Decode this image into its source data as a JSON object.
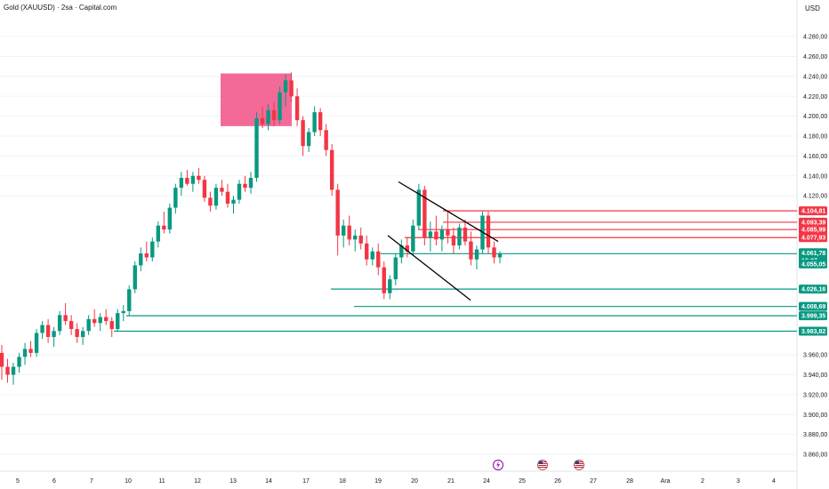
{
  "header": {
    "title": "Gold (XAUUSD) · 2sa · Capital.com",
    "currency": "USD"
  },
  "chart_data": {
    "type": "candlestick",
    "title": "Gold (XAUUSD) · 2sa · Capital.com",
    "ylim": [
      3850,
      4300
    ],
    "yticks": [
      3860,
      3880,
      3900,
      3920,
      3940,
      3960,
      4120,
      4140,
      4160,
      4180,
      4200,
      4220,
      4240,
      4260,
      4280
    ],
    "yticks_display": [
      "3.860,00",
      "3.880,00",
      "3.900,00",
      "3.920,00",
      "3.940,00",
      "3.960,00",
      "4.120,00",
      "4.140,00",
      "4.160,00",
      "4.180,00",
      "4.200,00",
      "4.220,00",
      "4.240,00",
      "4.260,00",
      "4.280,00"
    ],
    "x_labels": [
      "5",
      "6",
      "7",
      "10",
      "11",
      "12",
      "13",
      "14",
      "17",
      "18",
      "19",
      "20",
      "21",
      "24",
      "25",
      "26",
      "27",
      "28",
      "Ara",
      "2",
      "3",
      "4"
    ],
    "colors": {
      "up": "#089981",
      "down": "#f23645",
      "box": "#f0457e",
      "trendline": "#000000"
    },
    "candles": [
      [
        3962,
        3970,
        3935,
        3948
      ],
      [
        3948,
        3956,
        3932,
        3940
      ],
      [
        3940,
        3952,
        3930,
        3948
      ],
      [
        3948,
        3962,
        3942,
        3958
      ],
      [
        3958,
        3972,
        3950,
        3966
      ],
      [
        3966,
        3974,
        3958,
        3962
      ],
      [
        3962,
        3986,
        3958,
        3982
      ],
      [
        3982,
        3994,
        3976,
        3990
      ],
      [
        3990,
        3996,
        3972,
        3978
      ],
      [
        3978,
        3988,
        3968,
        3984
      ],
      [
        3984,
        4004,
        3980,
        4000
      ],
      [
        4000,
        4012,
        3990,
        3994
      ],
      [
        3994,
        4000,
        3980,
        3986
      ],
      [
        3986,
        3992,
        3972,
        3978
      ],
      [
        3978,
        3988,
        3970,
        3984
      ],
      [
        3984,
        4000,
        3980,
        3996
      ],
      [
        3996,
        4006,
        3988,
        3992
      ],
      [
        3992,
        4002,
        3984,
        3998
      ],
      [
        3998,
        4006,
        3990,
        3994
      ],
      [
        3994,
        3998,
        3978,
        3986
      ],
      [
        3986,
        4006,
        3984,
        4002
      ],
      [
        4002,
        4010,
        3994,
        4004
      ],
      [
        4004,
        4030,
        4000,
        4026
      ],
      [
        4026,
        4054,
        4022,
        4050
      ],
      [
        4050,
        4068,
        4044,
        4062
      ],
      [
        4062,
        4074,
        4054,
        4058
      ],
      [
        4058,
        4078,
        4054,
        4074
      ],
      [
        4074,
        4094,
        4068,
        4090
      ],
      [
        4090,
        4104,
        4082,
        4086
      ],
      [
        4086,
        4112,
        4082,
        4108
      ],
      [
        4108,
        4132,
        4102,
        4128
      ],
      [
        4128,
        4144,
        4120,
        4138
      ],
      [
        4138,
        4146,
        4130,
        4132
      ],
      [
        4132,
        4144,
        4124,
        4140
      ],
      [
        4140,
        4148,
        4132,
        4136
      ],
      [
        4136,
        4140,
        4114,
        4118
      ],
      [
        4118,
        4124,
        4104,
        4110
      ],
      [
        4110,
        4132,
        4106,
        4128
      ],
      [
        4128,
        4136,
        4120,
        4124
      ],
      [
        4124,
        4132,
        4108,
        4112
      ],
      [
        4112,
        4120,
        4102,
        4116
      ],
      [
        4116,
        4136,
        4112,
        4132
      ],
      [
        4132,
        4140,
        4124,
        4128
      ],
      [
        4128,
        4144,
        4122,
        4138
      ],
      [
        4138,
        4204,
        4134,
        4198
      ],
      [
        4198,
        4210,
        4188,
        4192
      ],
      [
        4192,
        4212,
        4186,
        4206
      ],
      [
        4206,
        4214,
        4190,
        4196
      ],
      [
        4196,
        4230,
        4192,
        4224
      ],
      [
        4224,
        4242,
        4210,
        4236
      ],
      [
        4236,
        4244,
        4214,
        4220
      ],
      [
        4220,
        4228,
        4190,
        4196
      ],
      [
        4196,
        4200,
        4160,
        4170
      ],
      [
        4170,
        4188,
        4164,
        4184
      ],
      [
        4184,
        4210,
        4180,
        4204
      ],
      [
        4204,
        4208,
        4180,
        4186
      ],
      [
        4186,
        4192,
        4160,
        4166
      ],
      [
        4166,
        4172,
        4120,
        4126
      ],
      [
        4126,
        4132,
        4060,
        4080
      ],
      [
        4080,
        4096,
        4068,
        4090
      ],
      [
        4090,
        4100,
        4070,
        4076
      ],
      [
        4076,
        4086,
        4064,
        4080
      ],
      [
        4080,
        4088,
        4066,
        4072
      ],
      [
        4072,
        4080,
        4050,
        4056
      ],
      [
        4056,
        4068,
        4050,
        4064
      ],
      [
        4064,
        4072,
        4040,
        4048
      ],
      [
        4048,
        4054,
        4016,
        4022
      ],
      [
        4022,
        4040,
        4016,
        4036
      ],
      [
        4036,
        4062,
        4030,
        4058
      ],
      [
        4058,
        4076,
        4052,
        4070
      ],
      [
        4070,
        4078,
        4058,
        4064
      ],
      [
        4064,
        4096,
        4060,
        4090
      ],
      [
        4090,
        4132,
        4086,
        4126
      ],
      [
        4126,
        4130,
        4070,
        4078
      ],
      [
        4078,
        4094,
        4064,
        4084
      ],
      [
        4084,
        4100,
        4070,
        4076
      ],
      [
        4076,
        4090,
        4064,
        4086
      ],
      [
        4086,
        4104,
        4072,
        4080
      ],
      [
        4080,
        4088,
        4062,
        4070
      ],
      [
        4070,
        4092,
        4066,
        4088
      ],
      [
        4088,
        4096,
        4070,
        4074
      ],
      [
        4074,
        4084,
        4050,
        4056
      ],
      [
        4056,
        4070,
        4046,
        4066
      ],
      [
        4066,
        4104,
        4062,
        4100
      ],
      [
        4100,
        4104,
        4062,
        4068
      ],
      [
        4068,
        4074,
        4052,
        4058
      ],
      [
        4058,
        4064,
        4052,
        4062
      ]
    ],
    "levels": [
      {
        "value": 4104.81,
        "label": "4.104,81",
        "color": "#f23645"
      },
      {
        "value": 4093.39,
        "label": "4.093,39",
        "color": "#f23645"
      },
      {
        "value": 4085.99,
        "label": "4.085,99",
        "color": "#f23645"
      },
      {
        "value": 4077.93,
        "label": "4.077,93",
        "color": "#f23645"
      },
      {
        "value": 4061.78,
        "label": "4.061,78",
        "color": "#089981"
      },
      {
        "value": 4055.05,
        "label": "4.055,05",
        "color": "#089981"
      },
      {
        "value": 4026.16,
        "label": "4.026,16",
        "color": "#089981"
      },
      {
        "value": 4008.69,
        "label": "4.008,69",
        "color": "#089981"
      },
      {
        "value": 3999.35,
        "label": "3.999,35",
        "color": "#089981"
      },
      {
        "value": 3983.82,
        "label": "3.983,82",
        "color": "#089981"
      }
    ],
    "countdown": "19:27",
    "supply_zone": {
      "y_low": 4190,
      "y_high": 4243
    },
    "channel": {
      "upper": [
        [
          4134,
          4074
        ]
      ],
      "lower": [
        [
          4080,
          4015
        ]
      ]
    }
  },
  "events": [
    {
      "name": "lightning-event-icon",
      "symbol": "⚡"
    },
    {
      "name": "us-flag-event-icon",
      "symbol": "US"
    },
    {
      "name": "us-flag-event-icon-2",
      "symbol": "US"
    }
  ]
}
